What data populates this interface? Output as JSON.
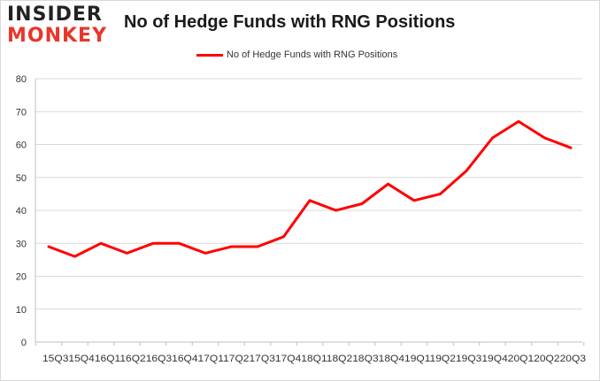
{
  "logo": {
    "line1": "INSIDER",
    "line2": "MONKEY"
  },
  "chart_data": {
    "type": "line",
    "title": "No of Hedge Funds with RNG Positions",
    "legend_position": "top-center",
    "grid": true,
    "categories": [
      "15Q3",
      "15Q4",
      "16Q1",
      "16Q2",
      "16Q3",
      "16Q4",
      "17Q1",
      "17Q2",
      "17Q3",
      "17Q4",
      "18Q1",
      "18Q2",
      "18Q3",
      "18Q4",
      "19Q1",
      "19Q2",
      "19Q3",
      "19Q4",
      "20Q1",
      "20Q2",
      "20Q3"
    ],
    "x_tick_text": "15Q315Q416Q116Q216Q316Q417Q117Q217Q317Q418Q118Q218Q318Q419Q119Q219Q319Q420Q120Q220Q3",
    "series": [
      {
        "name": "No of Hedge Funds with RNG Positions",
        "color": "#ff0000",
        "values": [
          29,
          26,
          30,
          27,
          30,
          30,
          27,
          29,
          29,
          32,
          43,
          40,
          42,
          48,
          43,
          45,
          52,
          62,
          67,
          62,
          59
        ]
      }
    ],
    "ylim": [
      0,
      80
    ],
    "yticks": [
      "0",
      "10",
      "20",
      "30",
      "40",
      "50",
      "60",
      "70",
      "80"
    ],
    "xlabel": "",
    "ylabel": ""
  }
}
